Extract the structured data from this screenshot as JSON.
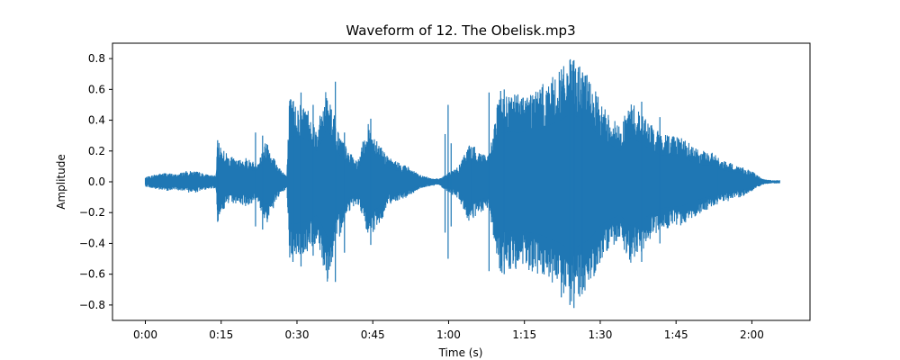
{
  "chart_data": {
    "type": "line",
    "title": "Waveform of 12. The Obelisk.mp3",
    "xlabel": "Time (s)",
    "ylabel": "Amplitude",
    "xlim": [
      -6.5,
      131.5
    ],
    "ylim": [
      -0.9,
      0.9
    ],
    "grid": false,
    "legend": "none",
    "line_color": "#1f77b4",
    "x_ticks": [
      {
        "value": 0,
        "label": "0:00"
      },
      {
        "value": 15,
        "label": "0:15"
      },
      {
        "value": 30,
        "label": "0:30"
      },
      {
        "value": 45,
        "label": "0:45"
      },
      {
        "value": 60,
        "label": "1:00"
      },
      {
        "value": 75,
        "label": "1:15"
      },
      {
        "value": 90,
        "label": "1:30"
      },
      {
        "value": 105,
        "label": "1:45"
      },
      {
        "value": 120,
        "label": "2:00"
      }
    ],
    "y_ticks": [
      {
        "value": -0.8,
        "label": "−0.8"
      },
      {
        "value": -0.6,
        "label": "−0.6"
      },
      {
        "value": -0.4,
        "label": "−0.4"
      },
      {
        "value": -0.2,
        "label": "−0.2"
      },
      {
        "value": 0.0,
        "label": "0.0"
      },
      {
        "value": 0.2,
        "label": "0.2"
      },
      {
        "value": 0.4,
        "label": "0.4"
      },
      {
        "value": 0.6,
        "label": "0.6"
      },
      {
        "value": 0.8,
        "label": "0.8"
      }
    ],
    "envelope": {
      "time": [
        0,
        2,
        4,
        6,
        8,
        10,
        12,
        14,
        14.3,
        16,
        18,
        20,
        22,
        24,
        26,
        28,
        28.5,
        30,
        32,
        34,
        36,
        38,
        40,
        42,
        44,
        46,
        48,
        50,
        52,
        54,
        56,
        58,
        60,
        62,
        64,
        66,
        68,
        70,
        72,
        74,
        76,
        78,
        80,
        82,
        84,
        86,
        88,
        90,
        92,
        94,
        96,
        98,
        100,
        102,
        104,
        106,
        108,
        110,
        112,
        114,
        116,
        118,
        120,
        122,
        124,
        125.5
      ],
      "upper": [
        0.03,
        0.05,
        0.06,
        0.05,
        0.07,
        0.07,
        0.05,
        0.04,
        0.27,
        0.19,
        0.14,
        0.16,
        0.12,
        0.28,
        0.12,
        0.04,
        0.55,
        0.53,
        0.5,
        0.35,
        0.64,
        0.35,
        0.21,
        0.13,
        0.38,
        0.28,
        0.16,
        0.13,
        0.1,
        0.05,
        0.03,
        0.02,
        0.06,
        0.1,
        0.25,
        0.21,
        0.17,
        0.57,
        0.59,
        0.58,
        0.6,
        0.62,
        0.67,
        0.72,
        0.8,
        0.76,
        0.67,
        0.52,
        0.44,
        0.36,
        0.53,
        0.46,
        0.38,
        0.31,
        0.32,
        0.3,
        0.24,
        0.2,
        0.2,
        0.14,
        0.12,
        0.1,
        0.07,
        0.02,
        0.01,
        0.01
      ],
      "lower": [
        -0.03,
        -0.05,
        -0.06,
        -0.05,
        -0.07,
        -0.07,
        -0.05,
        -0.04,
        -0.26,
        -0.15,
        -0.14,
        -0.16,
        -0.12,
        -0.28,
        -0.12,
        -0.04,
        -0.51,
        -0.49,
        -0.47,
        -0.39,
        -0.65,
        -0.4,
        -0.2,
        -0.14,
        -0.36,
        -0.31,
        -0.15,
        -0.12,
        -0.1,
        -0.05,
        -0.03,
        -0.02,
        -0.07,
        -0.11,
        -0.27,
        -0.21,
        -0.18,
        -0.6,
        -0.58,
        -0.57,
        -0.6,
        -0.62,
        -0.67,
        -0.72,
        -0.8,
        -0.75,
        -0.67,
        -0.52,
        -0.44,
        -0.39,
        -0.53,
        -0.46,
        -0.38,
        -0.31,
        -0.3,
        -0.29,
        -0.24,
        -0.2,
        -0.17,
        -0.14,
        -0.12,
        -0.1,
        -0.06,
        -0.02,
        -0.01,
        -0.01
      ]
    },
    "peaks": [
      {
        "t": 14.3,
        "y": 0.27,
        "y2": -0.26
      },
      {
        "t": 21.8,
        "y": 0.32,
        "y2": -0.29
      },
      {
        "t": 23.2,
        "y": 0.3,
        "y2": -0.31
      },
      {
        "t": 29.2,
        "y": 0.52,
        "y2": -0.52
      },
      {
        "t": 30.8,
        "y": 0.58,
        "y2": -0.55
      },
      {
        "t": 33.2,
        "y": 0.5,
        "y2": -0.48
      },
      {
        "t": 37.6,
        "y": 0.65,
        "y2": -0.65
      },
      {
        "t": 39.4,
        "y": 0.32,
        "y2": -0.46
      },
      {
        "t": 44.6,
        "y": 0.41,
        "y2": -0.41
      },
      {
        "t": 59.3,
        "y": 0.31,
        "y2": -0.33
      },
      {
        "t": 60.5,
        "y": 0.25,
        "y2": -0.29
      },
      {
        "t": 59.9,
        "y": 0.5,
        "y2": -0.5
      },
      {
        "t": 64.3,
        "y": 0.2,
        "y2": -0.16
      },
      {
        "t": 68.0,
        "y": 0.58,
        "y2": -0.58
      },
      {
        "t": 70.3,
        "y": 0.59,
        "y2": -0.58
      },
      {
        "t": 71.0,
        "y": 0.6,
        "y2": -0.6
      },
      {
        "t": 82.3,
        "y": 0.73,
        "y2": -0.75
      },
      {
        "t": 84.0,
        "y": 0.79,
        "y2": -0.8
      },
      {
        "t": 84.8,
        "y": 0.79,
        "y2": -0.82
      },
      {
        "t": 86.5,
        "y": 0.71,
        "y2": -0.7
      },
      {
        "t": 98.2,
        "y": 0.52,
        "y2": -0.52
      },
      {
        "t": 101.8,
        "y": 0.42,
        "y2": -0.4
      },
      {
        "t": 113.2,
        "y": 0.12,
        "y2": -0.13
      }
    ]
  }
}
